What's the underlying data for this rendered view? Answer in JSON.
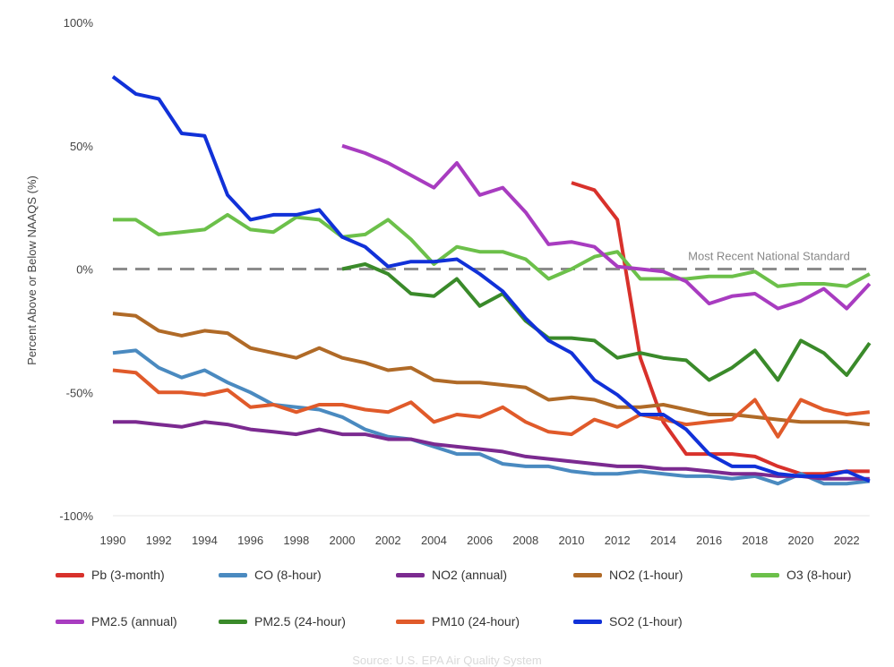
{
  "chart_data": {
    "type": "line",
    "title": "",
    "xlabel": "",
    "ylabel": "Percent Above or Below NAAQS (%)",
    "xlim": [
      1990,
      2023
    ],
    "ylim": [
      -100,
      100
    ],
    "x_ticks": [
      "1990",
      "1992",
      "1994",
      "1996",
      "1998",
      "2000",
      "2002",
      "2004",
      "2006",
      "2008",
      "2010",
      "2012",
      "2014",
      "2016",
      "2018",
      "2020",
      "2022"
    ],
    "y_ticks": [
      {
        "value": 100,
        "label": "100%"
      },
      {
        "value": 50,
        "label": "50%"
      },
      {
        "value": 0,
        "label": "0%"
      },
      {
        "value": -50,
        "label": "-50%"
      },
      {
        "value": -100,
        "label": "-100%"
      }
    ],
    "grid": false,
    "reference_line": {
      "value": 0,
      "label": "Most Recent National Standard",
      "color": "#8c8c8c",
      "style": "dashed"
    },
    "legend_position": "bottom",
    "series": [
      {
        "name": "Pb (3-month)",
        "color": "#d8312b",
        "start_year": 2010,
        "values": [
          35,
          32,
          20,
          -36,
          -62,
          -75,
          -75,
          -75,
          -76,
          -80,
          -83,
          -83,
          -82,
          -82
        ]
      },
      {
        "name": "CO (8-hour)",
        "color": "#4a8ac0",
        "start_year": 1990,
        "values": [
          -34,
          -33,
          -40,
          -44,
          -41,
          -46,
          -50,
          -55,
          -56,
          -57,
          -60,
          -65,
          -68,
          -69,
          -72,
          -75,
          -75,
          -79,
          -80,
          -80,
          -82,
          -83,
          -83,
          -82,
          -83,
          -84,
          -84,
          -85,
          -84,
          -87,
          -83,
          -87,
          -87,
          -86
        ]
      },
      {
        "name": "NO2 (annual)",
        "color": "#7b2a90",
        "start_year": 1990,
        "values": [
          -62,
          -62,
          -63,
          -64,
          -62,
          -63,
          -65,
          -66,
          -67,
          -65,
          -67,
          -67,
          -69,
          -69,
          -71,
          -72,
          -73,
          -74,
          -76,
          -77,
          -78,
          -79,
          -80,
          -80,
          -81,
          -81,
          -82,
          -83,
          -83,
          -84,
          -84,
          -85,
          -85,
          -85
        ]
      },
      {
        "name": "NO2 (1-hour)",
        "color": "#b06a27",
        "start_year": 1990,
        "values": [
          -18,
          -19,
          -25,
          -27,
          -25,
          -26,
          -32,
          -34,
          -36,
          -32,
          -36,
          -38,
          -41,
          -40,
          -45,
          -46,
          -46,
          -47,
          -48,
          -53,
          -52,
          -53,
          -56,
          -56,
          -55,
          -57,
          -59,
          -59,
          -60,
          -61,
          -62,
          -62,
          -62,
          -63
        ]
      },
      {
        "name": "O3 (8-hour)",
        "color": "#6cc04a",
        "start_year": 1990,
        "values": [
          20,
          20,
          14,
          15,
          16,
          22,
          16,
          15,
          21,
          20,
          13,
          14,
          20,
          12,
          2,
          9,
          7,
          7,
          4,
          -4,
          0,
          5,
          7,
          -4,
          -4,
          -4,
          -3,
          -3,
          -1,
          -7,
          -6,
          -6,
          -7,
          -2
        ]
      },
      {
        "name": "PM2.5 (annual)",
        "color": "#a83cc0",
        "start_year": 2000,
        "values": [
          50,
          47,
          43,
          38,
          33,
          43,
          30,
          33,
          23,
          10,
          11,
          9,
          1,
          0,
          -1,
          -5,
          -14,
          -11,
          -10,
          -16,
          -13,
          -8,
          -16,
          -6
        ]
      },
      {
        "name": "PM2.5 (24-hour)",
        "color": "#3a8a2a",
        "start_year": 2000,
        "values": [
          0,
          2,
          -2,
          -10,
          -11,
          -4,
          -15,
          -10,
          -21,
          -28,
          -28,
          -29,
          -36,
          -34,
          -36,
          -37,
          -45,
          -40,
          -33,
          -45,
          -29,
          -34,
          -43,
          -30
        ]
      },
      {
        "name": "PM10 (24-hour)",
        "color": "#e05a2a",
        "start_year": 1990,
        "values": [
          -41,
          -42,
          -50,
          -50,
          -51,
          -49,
          -56,
          -55,
          -58,
          -55,
          -55,
          -57,
          -58,
          -54,
          -62,
          -59,
          -60,
          -56,
          -62,
          -66,
          -67,
          -61,
          -64,
          -59,
          -61,
          -63,
          -62,
          -61,
          -53,
          -68,
          -53,
          -57,
          -59,
          -58
        ]
      },
      {
        "name": "SO2 (1-hour)",
        "color": "#1131d8",
        "start_year": 1990,
        "values": [
          78,
          71,
          69,
          55,
          54,
          30,
          20,
          22,
          22,
          24,
          13,
          9,
          1,
          3,
          3,
          4,
          -2,
          -9,
          -20,
          -29,
          -34,
          -45,
          -51,
          -59,
          -59,
          -65,
          -75,
          -80,
          -80,
          -83,
          -84,
          -84,
          -82,
          -86
        ]
      }
    ],
    "legend_rows": [
      [
        0,
        1,
        2,
        3,
        4
      ],
      [
        5,
        6,
        7,
        8
      ]
    ],
    "source": "Source: U.S. EPA Air Quality System"
  }
}
